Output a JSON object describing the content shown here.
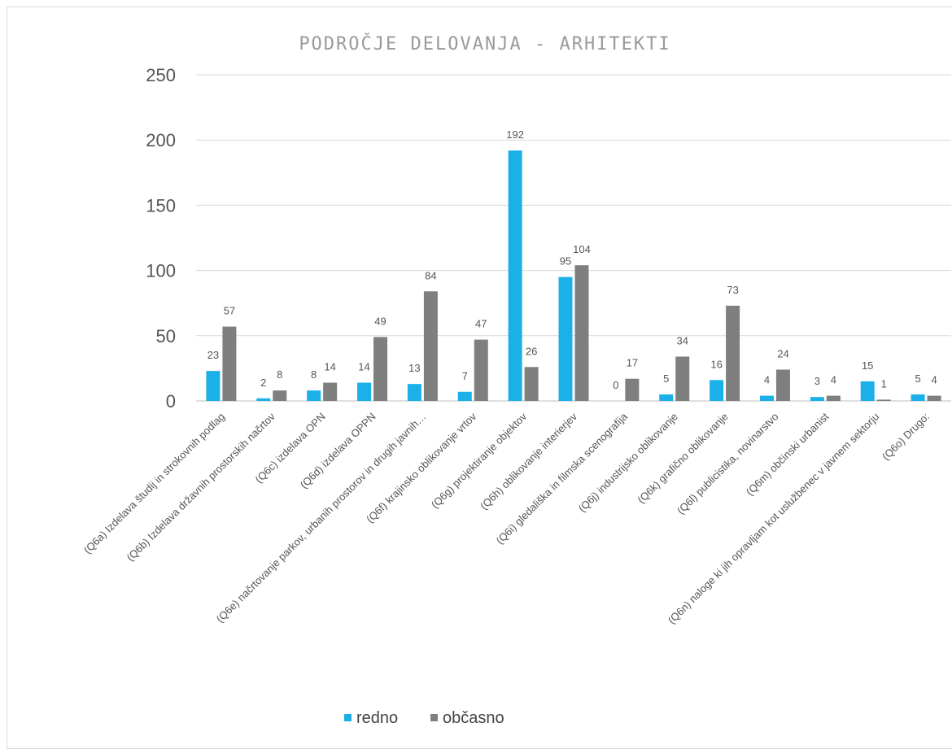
{
  "chart_data": {
    "type": "bar",
    "title": "PODROČJE DELOVANJA - ARHITEKTI",
    "categories": [
      "(Q6a) Izdelava študij in strokovnih podlag",
      "(Q6b) Izdelava državnih prostorskih načrtov",
      "(Q6c) izdelava OPN",
      "(Q6d) izdelava OPPN",
      "(Q6e) načrtovanje parkov, urbanih prostorov in drugih javnih…",
      "(Q6f) krajinsko oblikovanje vrtov",
      "(Q6g) projektiranje objektov",
      "(Q6h) oblikovanje interierjev",
      "(Q6i) gledališka in filmska scenografija",
      "(Q6j) industrijsko oblikovanje",
      "(Q6k) grafično oblikovanje",
      "(Q6l) publicistika, novinarstvo",
      "(Q6m) občinski urbanist",
      "(Q6n) naloge ki jih opravljam kot uslužbenec v javnem sektorju",
      "(Q6o) Drugo:"
    ],
    "series": [
      {
        "name": "redno",
        "color": "#1cb0e8",
        "values": [
          23,
          2,
          8,
          14,
          13,
          7,
          192,
          95,
          0,
          5,
          16,
          4,
          3,
          15,
          5
        ]
      },
      {
        "name": "občasno",
        "color": "#7f7f7f",
        "values": [
          57,
          8,
          14,
          49,
          84,
          47,
          26,
          104,
          17,
          34,
          73,
          24,
          4,
          1,
          4
        ]
      }
    ],
    "ylim": [
      0,
      250
    ],
    "yticks": [
      0,
      50,
      100,
      150,
      200,
      250
    ],
    "grid": true,
    "legend": "bottom"
  }
}
